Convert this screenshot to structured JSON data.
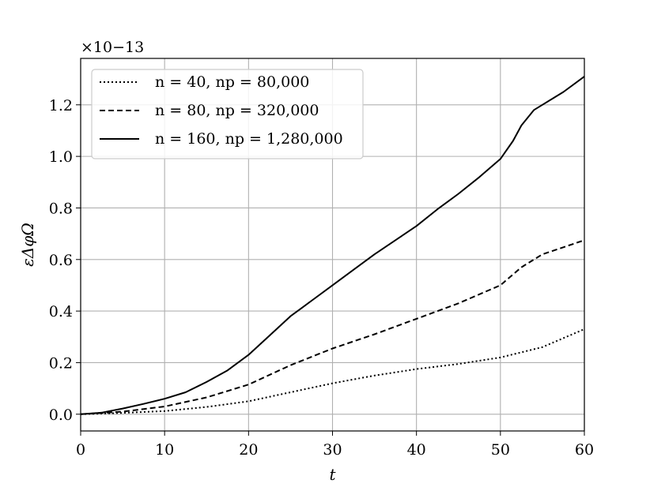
{
  "chart_data": {
    "type": "line",
    "title": "",
    "xlabel": "t",
    "ylabel": "εΔφΩ",
    "y_multiplier": "×10−13",
    "xlim": [
      0,
      60
    ],
    "ylim": [
      -0.065,
      1.38
    ],
    "xticks": [
      0,
      10,
      20,
      30,
      40,
      50,
      60
    ],
    "xtick_labels": [
      "0",
      "10",
      "20",
      "30",
      "40",
      "50",
      "60"
    ],
    "yticks": [
      0.0,
      0.2,
      0.4,
      0.6,
      0.8,
      1.0,
      1.2
    ],
    "ytick_labels": [
      "0.0",
      "0.2",
      "0.4",
      "0.6",
      "0.8",
      "1.0",
      "1.2"
    ],
    "grid": true,
    "legend_position": "upper-left",
    "series": [
      {
        "name": "n = 40, np = 80,000",
        "style": "dotted",
        "x": [
          0,
          5,
          10,
          15,
          20,
          25,
          30,
          35,
          40,
          45,
          50,
          55,
          60
        ],
        "y": [
          0.0,
          0.005,
          0.012,
          0.028,
          0.05,
          0.085,
          0.12,
          0.15,
          0.175,
          0.195,
          0.22,
          0.26,
          0.33
        ]
      },
      {
        "name": "n = 80, np = 320,000",
        "style": "dashed",
        "x": [
          0,
          5,
          10,
          15,
          20,
          25,
          30,
          35,
          40,
          45,
          50,
          52.5,
          55,
          60
        ],
        "y": [
          0.0,
          0.01,
          0.03,
          0.065,
          0.115,
          0.19,
          0.255,
          0.31,
          0.37,
          0.43,
          0.5,
          0.57,
          0.62,
          0.675
        ]
      },
      {
        "name": "n = 160, np = 1,280,000",
        "style": "solid",
        "x": [
          0,
          2.5,
          5,
          7.5,
          10,
          12.5,
          15,
          17.5,
          20,
          22.5,
          25,
          27.5,
          30,
          32.5,
          35,
          37.5,
          40,
          42.5,
          45,
          47.5,
          50,
          51.5,
          52.5,
          54,
          55,
          57.5,
          60
        ],
        "y": [
          0.0,
          0.006,
          0.022,
          0.04,
          0.06,
          0.085,
          0.125,
          0.17,
          0.23,
          0.305,
          0.38,
          0.44,
          0.5,
          0.56,
          0.62,
          0.675,
          0.73,
          0.795,
          0.855,
          0.92,
          0.99,
          1.06,
          1.12,
          1.18,
          1.2,
          1.25,
          1.31
        ]
      }
    ]
  }
}
